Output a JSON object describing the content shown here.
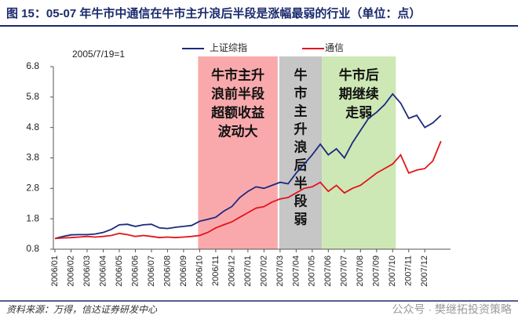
{
  "chart_data": {
    "type": "line",
    "title": "图 15：05-07 年牛市中通信在牛市主升浪后半段是涨幅最弱的行业（单位：点）",
    "annotation": "2005/7/19=1",
    "source": "资料来源：万得，信达证券研发中心",
    "watermark": "公众号 · 樊继拓投资策略",
    "x": [
      0,
      0.5,
      1,
      1.5,
      2,
      2.5,
      3,
      3.5,
      4,
      4.5,
      5,
      5.5,
      6,
      6.5,
      7,
      7.5,
      8,
      8.5,
      9,
      9.5,
      10,
      10.5,
      11,
      11.5,
      12,
      12.5,
      13,
      13.5,
      14,
      14.5,
      15,
      15.5,
      16,
      16.5,
      17,
      17.5,
      18,
      18.5,
      19,
      19.5,
      20,
      20.5,
      21,
      21.5,
      22,
      22.5,
      23,
      23.5,
      24
    ],
    "xlim": [
      0,
      24.5
    ],
    "xticks": [
      {
        "value": 0,
        "label": "2006/01"
      },
      {
        "value": 1,
        "label": "2006/02"
      },
      {
        "value": 2,
        "label": "2006/03"
      },
      {
        "value": 3,
        "label": "2006/04"
      },
      {
        "value": 4,
        "label": "2006/05"
      },
      {
        "value": 5,
        "label": "2006/06"
      },
      {
        "value": 6,
        "label": "2006/07"
      },
      {
        "value": 7,
        "label": "2006/08"
      },
      {
        "value": 8,
        "label": "2006/09"
      },
      {
        "value": 9,
        "label": "2006/10"
      },
      {
        "value": 10,
        "label": "2006/11"
      },
      {
        "value": 11,
        "label": "2006/12"
      },
      {
        "value": 12,
        "label": "2007/01"
      },
      {
        "value": 13,
        "label": "2007/02"
      },
      {
        "value": 14,
        "label": "2007/03"
      },
      {
        "value": 15,
        "label": "2007/04"
      },
      {
        "value": 16,
        "label": "2007/05"
      },
      {
        "value": 17,
        "label": "2007/06"
      },
      {
        "value": 18,
        "label": "2007/07"
      },
      {
        "value": 19,
        "label": "2007/08"
      },
      {
        "value": 20,
        "label": "2007/09"
      },
      {
        "value": 21,
        "label": "2007/10"
      },
      {
        "value": 22,
        "label": "2007/11"
      },
      {
        "value": 23,
        "label": "2007/12"
      }
    ],
    "ylim": [
      0.8,
      6.8
    ],
    "yticks": [
      0.8,
      1.8,
      2.8,
      3.8,
      4.8,
      5.8,
      6.8
    ],
    "series": [
      {
        "name": "上证综指",
        "color": "#1c2a7e",
        "values": [
          1.15,
          1.22,
          1.27,
          1.28,
          1.28,
          1.3,
          1.35,
          1.45,
          1.6,
          1.62,
          1.55,
          1.6,
          1.62,
          1.5,
          1.48,
          1.52,
          1.55,
          1.58,
          1.72,
          1.78,
          1.85,
          2.05,
          2.2,
          2.5,
          2.7,
          2.85,
          2.8,
          2.9,
          3.0,
          2.95,
          3.3,
          3.6,
          3.9,
          4.25,
          3.9,
          4.1,
          3.8,
          4.3,
          4.7,
          5.1,
          5.3,
          5.55,
          5.9,
          5.6,
          5.1,
          5.2,
          4.8,
          4.95,
          5.2
        ]
      },
      {
        "name": "通信",
        "color": "#e3141b",
        "values": [
          1.15,
          1.17,
          1.18,
          1.2,
          1.22,
          1.2,
          1.22,
          1.25,
          1.32,
          1.28,
          1.22,
          1.25,
          1.22,
          1.18,
          1.2,
          1.18,
          1.2,
          1.22,
          1.25,
          1.35,
          1.5,
          1.6,
          1.7,
          1.85,
          2.0,
          2.15,
          2.2,
          2.35,
          2.45,
          2.5,
          2.65,
          2.8,
          2.85,
          3.0,
          2.7,
          2.9,
          2.65,
          2.8,
          2.9,
          3.1,
          3.3,
          3.45,
          3.6,
          3.9,
          3.3,
          3.4,
          3.45,
          3.7,
          4.35
        ]
      }
    ],
    "regions": [
      {
        "start": 8.9,
        "end": 13.85,
        "color": "#f9a9ac",
        "label_lines": [
          "牛市主升",
          "浪前半段",
          "超额收益",
          "波动大"
        ]
      },
      {
        "start": 13.95,
        "end": 16.6,
        "color": "#c6c6c6",
        "label_lines": [
          "牛",
          "市",
          "主",
          "升",
          "浪",
          "后",
          "半",
          "段",
          "弱"
        ]
      },
      {
        "start": 16.6,
        "end": 21.2,
        "color": "#cde8b4",
        "label_lines": [
          "牛市后",
          "期继续",
          "走弱"
        ]
      }
    ]
  }
}
